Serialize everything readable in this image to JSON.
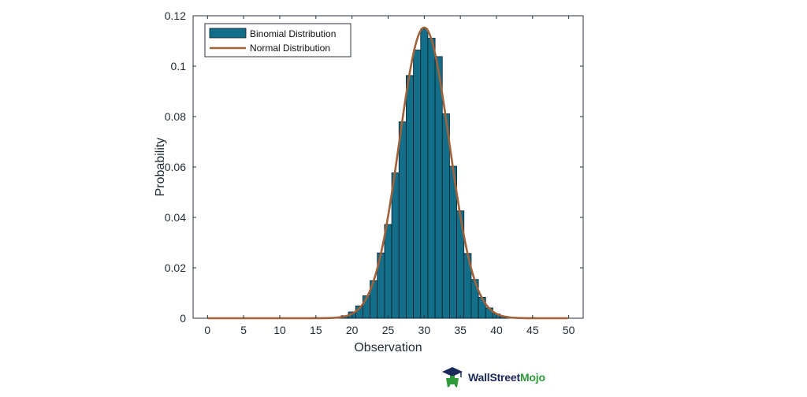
{
  "chart_data": {
    "type": "bar",
    "title": "",
    "xlabel": "Observation",
    "ylabel": "Probability",
    "xlim": [
      -2,
      52
    ],
    "ylim": [
      0,
      0.12
    ],
    "xticks": [
      "0",
      "5",
      "10",
      "15",
      "20",
      "25",
      "30",
      "35",
      "40",
      "45",
      "50"
    ],
    "yticks": [
      "0",
      "0.02",
      "0.04",
      "0.06",
      "0.08",
      "0.1",
      "0.12"
    ],
    "grid": false,
    "legend_position": "top-left",
    "series": [
      {
        "name": "Binomial Distribution",
        "type": "bar",
        "color": "#136e8a",
        "x": [
          19,
          20,
          21,
          22,
          23,
          24,
          25,
          26,
          27,
          28,
          29,
          30,
          31,
          32,
          33,
          34,
          35,
          36,
          37,
          38,
          39,
          40,
          41
        ],
        "values": [
          0.001,
          0.0025,
          0.0049,
          0.0089,
          0.0149,
          0.0259,
          0.0372,
          0.0577,
          0.0779,
          0.0963,
          0.1064,
          0.1148,
          0.1111,
          0.1038,
          0.0811,
          0.0603,
          0.0426,
          0.0257,
          0.0154,
          0.0083,
          0.0041,
          0.0017,
          0.0008
        ]
      },
      {
        "name": "Normal Distribution",
        "type": "line",
        "color": "#a0623a",
        "mean": 30,
        "std": 3.46
      }
    ]
  },
  "branding": {
    "logo_icon": "mortarboard-icon",
    "name_part1": "WallStreet",
    "name_part2": "Mojo"
  }
}
